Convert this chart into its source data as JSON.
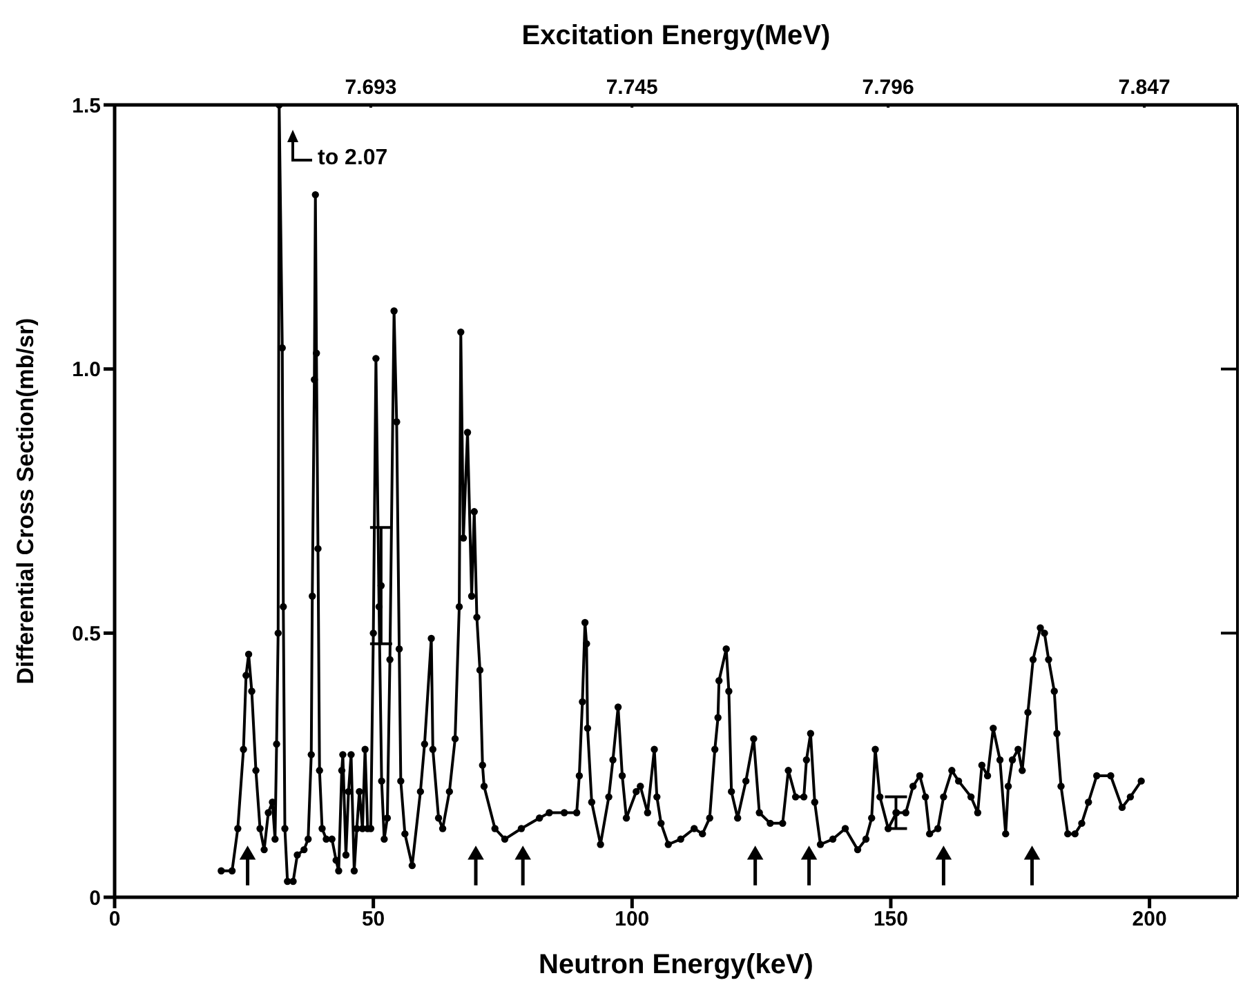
{
  "chart_data": {
    "type": "line",
    "xlabel": "Neutron Energy(keV)",
    "ylabel": "Differential Cross Section(mb/sr)",
    "x2label": "Excitation Energy(MeV)",
    "xlim": [
      0,
      217
    ],
    "xticks": [
      0,
      50,
      100,
      150,
      200
    ],
    "x2lim": [
      7.642,
      7.865
    ],
    "x2ticks": [
      7.693,
      7.745,
      7.796,
      7.847
    ],
    "ylim": [
      0,
      1.5
    ],
    "yticks": [
      0,
      0.5,
      {
        "value": 1,
        "label": "1.0"
      },
      1.5
    ],
    "grid": false,
    "legend": false,
    "annotations": [
      "to 2.07"
    ],
    "series": [
      {
        "type": "line",
        "marker": "circle",
        "line_style": "solid",
        "color": "#000000",
        "x": [
          20.6,
          22.7,
          23.8,
          24.9,
          25.4,
          25.9,
          26.5,
          27.3,
          28.1,
          28.9,
          29.7,
          30.5,
          31,
          31.3,
          31.6,
          31.8,
          32.4,
          32.6,
          32.9,
          33.4,
          34.5,
          35.3,
          36.6,
          37.4,
          38,
          38.2,
          38.6,
          38.8,
          39,
          39.3,
          39.6,
          40.1,
          40.9,
          42,
          42.8,
          43.3,
          43.9,
          44.1,
          44.7,
          45.2,
          45.7,
          46.3,
          46.8,
          47.3,
          47.9,
          48.4,
          48.9,
          49.5,
          50,
          50.5,
          51.1,
          51.6,
          52.1,
          52.7,
          53.2,
          54,
          54.5,
          55,
          55.3,
          56.1,
          57.5,
          59.1,
          59.9,
          61.2,
          61.5,
          62.6,
          63.4,
          64.7,
          65.8,
          66.6,
          66.9,
          67.4,
          68.2,
          69,
          69.5,
          70,
          70.6,
          71.1,
          71.4,
          73.5,
          75.4,
          78.6,
          82.1,
          84,
          86.9,
          89.3,
          89.8,
          90.4,
          90.9,
          91.2,
          91.4,
          92.2,
          93.9,
          95.5,
          96.3,
          97.3,
          98.1,
          98.9,
          100.8,
          101.6,
          103,
          104.3,
          104.8,
          105.6,
          107,
          109.4,
          112,
          113.6,
          115,
          116,
          116.6,
          116.8,
          118.2,
          118.7,
          119.2,
          120.4,
          122,
          123.5,
          124.6,
          126.7,
          129.1,
          130.2,
          131.6,
          133.2,
          133.7,
          134.5,
          135.3,
          136.4,
          138.8,
          141.2,
          143.6,
          145.2,
          146.3,
          147,
          147.9,
          149.5,
          151.1,
          152.9,
          154.3,
          155.6,
          156.7,
          157.5,
          159.1,
          160.2,
          161.8,
          163.1,
          165.5,
          166.8,
          167.6,
          168.7,
          169.8,
          171.1,
          172.2,
          172.7,
          173.5,
          174.6,
          175.4,
          176.5,
          177.5,
          178.9,
          179.7,
          180.5,
          181.6,
          182.1,
          182.9,
          184.2,
          185.6,
          186.9,
          188.2,
          189.8,
          192.5,
          194.7,
          196.3,
          198.4
        ],
        "values": [
          0.05,
          0.05,
          0.13,
          0.28,
          0.42,
          0.46,
          0.39,
          0.24,
          0.13,
          0.09,
          0.16,
          0.18,
          0.11,
          0.29,
          0.5,
          1.5,
          1.04,
          0.55,
          0.13,
          0.03,
          0.03,
          0.08,
          0.09,
          0.11,
          0.27,
          0.57,
          0.98,
          1.33,
          1.03,
          0.66,
          0.24,
          0.13,
          0.11,
          0.11,
          0.07,
          0.05,
          0.24,
          0.27,
          0.08,
          0.2,
          0.27,
          0.05,
          0.13,
          0.2,
          0.13,
          0.28,
          0.13,
          0.13,
          0.5,
          1.02,
          0.55,
          0.22,
          0.11,
          0.15,
          0.45,
          1.11,
          0.9,
          0.47,
          0.22,
          0.12,
          0.06,
          0.2,
          0.29,
          0.49,
          0.28,
          0.15,
          0.13,
          0.2,
          0.3,
          0.55,
          1.07,
          0.68,
          0.88,
          0.57,
          0.73,
          0.53,
          0.43,
          0.25,
          0.21,
          0.13,
          0.11,
          0.13,
          0.15,
          0.16,
          0.16,
          0.16,
          0.23,
          0.37,
          0.52,
          0.48,
          0.32,
          0.18,
          0.1,
          0.19,
          0.26,
          0.36,
          0.23,
          0.15,
          0.2,
          0.21,
          0.16,
          0.28,
          0.19,
          0.14,
          0.1,
          0.11,
          0.13,
          0.12,
          0.15,
          0.28,
          0.34,
          0.41,
          0.47,
          0.39,
          0.2,
          0.15,
          0.22,
          0.3,
          0.16,
          0.14,
          0.14,
          0.24,
          0.19,
          0.19,
          0.26,
          0.31,
          0.18,
          0.1,
          0.11,
          0.13,
          0.09,
          0.11,
          0.15,
          0.28,
          0.19,
          0.13,
          0.16,
          0.16,
          0.21,
          0.23,
          0.19,
          0.12,
          0.13,
          0.19,
          0.24,
          0.22,
          0.19,
          0.16,
          0.25,
          0.23,
          0.32,
          0.26,
          0.12,
          0.21,
          0.26,
          0.28,
          0.24,
          0.35,
          0.45,
          0.51,
          0.5,
          0.45,
          0.39,
          0.31,
          0.21,
          0.12,
          0.12,
          0.14,
          0.18,
          0.23,
          0.23,
          0.17,
          0.19,
          0.22
        ]
      },
      {
        "type": "scatter",
        "marker": "circle",
        "color": "#000000",
        "x": [
          51.5,
          151
        ],
        "values": [
          0.59,
          0.16
        ],
        "errors": [
          [
            0.48,
            0.7
          ],
          [
            0.13,
            0.19
          ]
        ]
      },
      {
        "type": "scatter",
        "marker": "triangle",
        "color": "#000000",
        "x": [
          25.7,
          69.8,
          78.9,
          123.8,
          134.2,
          160.2,
          177.3
        ],
        "values": [
          0.08,
          0.08,
          0.08,
          0.08,
          0.08,
          0.08,
          0.08
        ]
      }
    ]
  }
}
